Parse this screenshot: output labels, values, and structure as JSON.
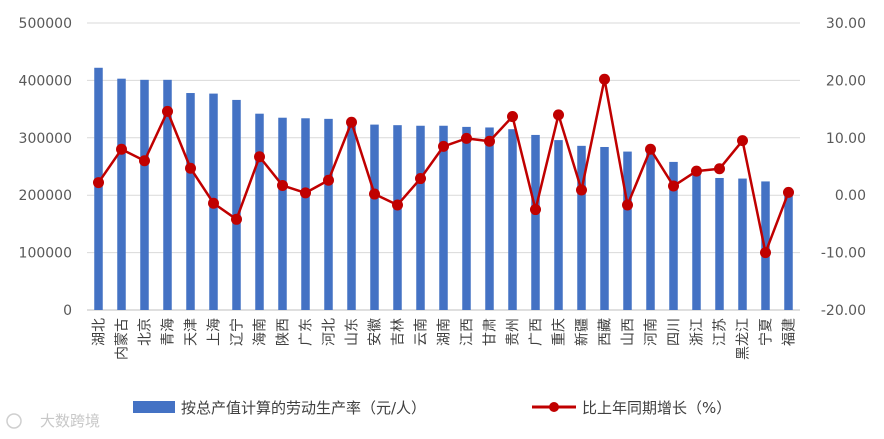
{
  "chart_data": {
    "type": "bar",
    "categories": [
      "湖北",
      "内蒙古",
      "北京",
      "青海",
      "天津",
      "上海",
      "辽宁",
      "海南",
      "陕西",
      "广东",
      "河北",
      "山东",
      "安徽",
      "吉林",
      "云南",
      "湖南",
      "江西",
      "甘肃",
      "贵州",
      "广西",
      "重庆",
      "新疆",
      "西藏",
      "山西",
      "河南",
      "四川",
      "浙江",
      "江苏",
      "黑龙江",
      "宁夏",
      "福建"
    ],
    "series": [
      {
        "name": "按总产值计算的劳动生产率（元/人）",
        "type": "bar",
        "axis": "left",
        "color": "#4472C4",
        "values": [
          422000,
          403000,
          401000,
          401000,
          378000,
          377000,
          366000,
          342000,
          335000,
          334000,
          333000,
          327000,
          323000,
          322000,
          321000,
          321000,
          319000,
          318000,
          315000,
          305000,
          296000,
          286000,
          284000,
          276000,
          278000,
          258000,
          247000,
          230000,
          229000,
          224000,
          207000
        ]
      },
      {
        "name": "比上年同期增长（%）",
        "type": "line",
        "axis": "right",
        "color": "#C00000",
        "values": [
          2.2,
          8.0,
          6.0,
          14.6,
          4.7,
          -1.4,
          -4.2,
          6.7,
          1.7,
          0.4,
          2.6,
          12.7,
          0.2,
          -1.7,
          2.9,
          8.5,
          9.9,
          9.4,
          13.7,
          -2.5,
          14.0,
          0.9,
          20.2,
          -1.7,
          8.0,
          1.6,
          4.2,
          4.6,
          9.5,
          -10.0,
          0.5
        ]
      }
    ],
    "y_left": {
      "min": 0,
      "max": 500000,
      "ticks": [
        "0",
        "100000",
        "200000",
        "300000",
        "400000",
        "500000"
      ]
    },
    "y_right": {
      "min": -20,
      "max": 30,
      "ticks": [
        "-20.00",
        "-10.00",
        "0.00",
        "10.00",
        "20.00",
        "30.00"
      ]
    },
    "legend_position": "bottom",
    "grid": true
  },
  "watermark": "大数跨境"
}
